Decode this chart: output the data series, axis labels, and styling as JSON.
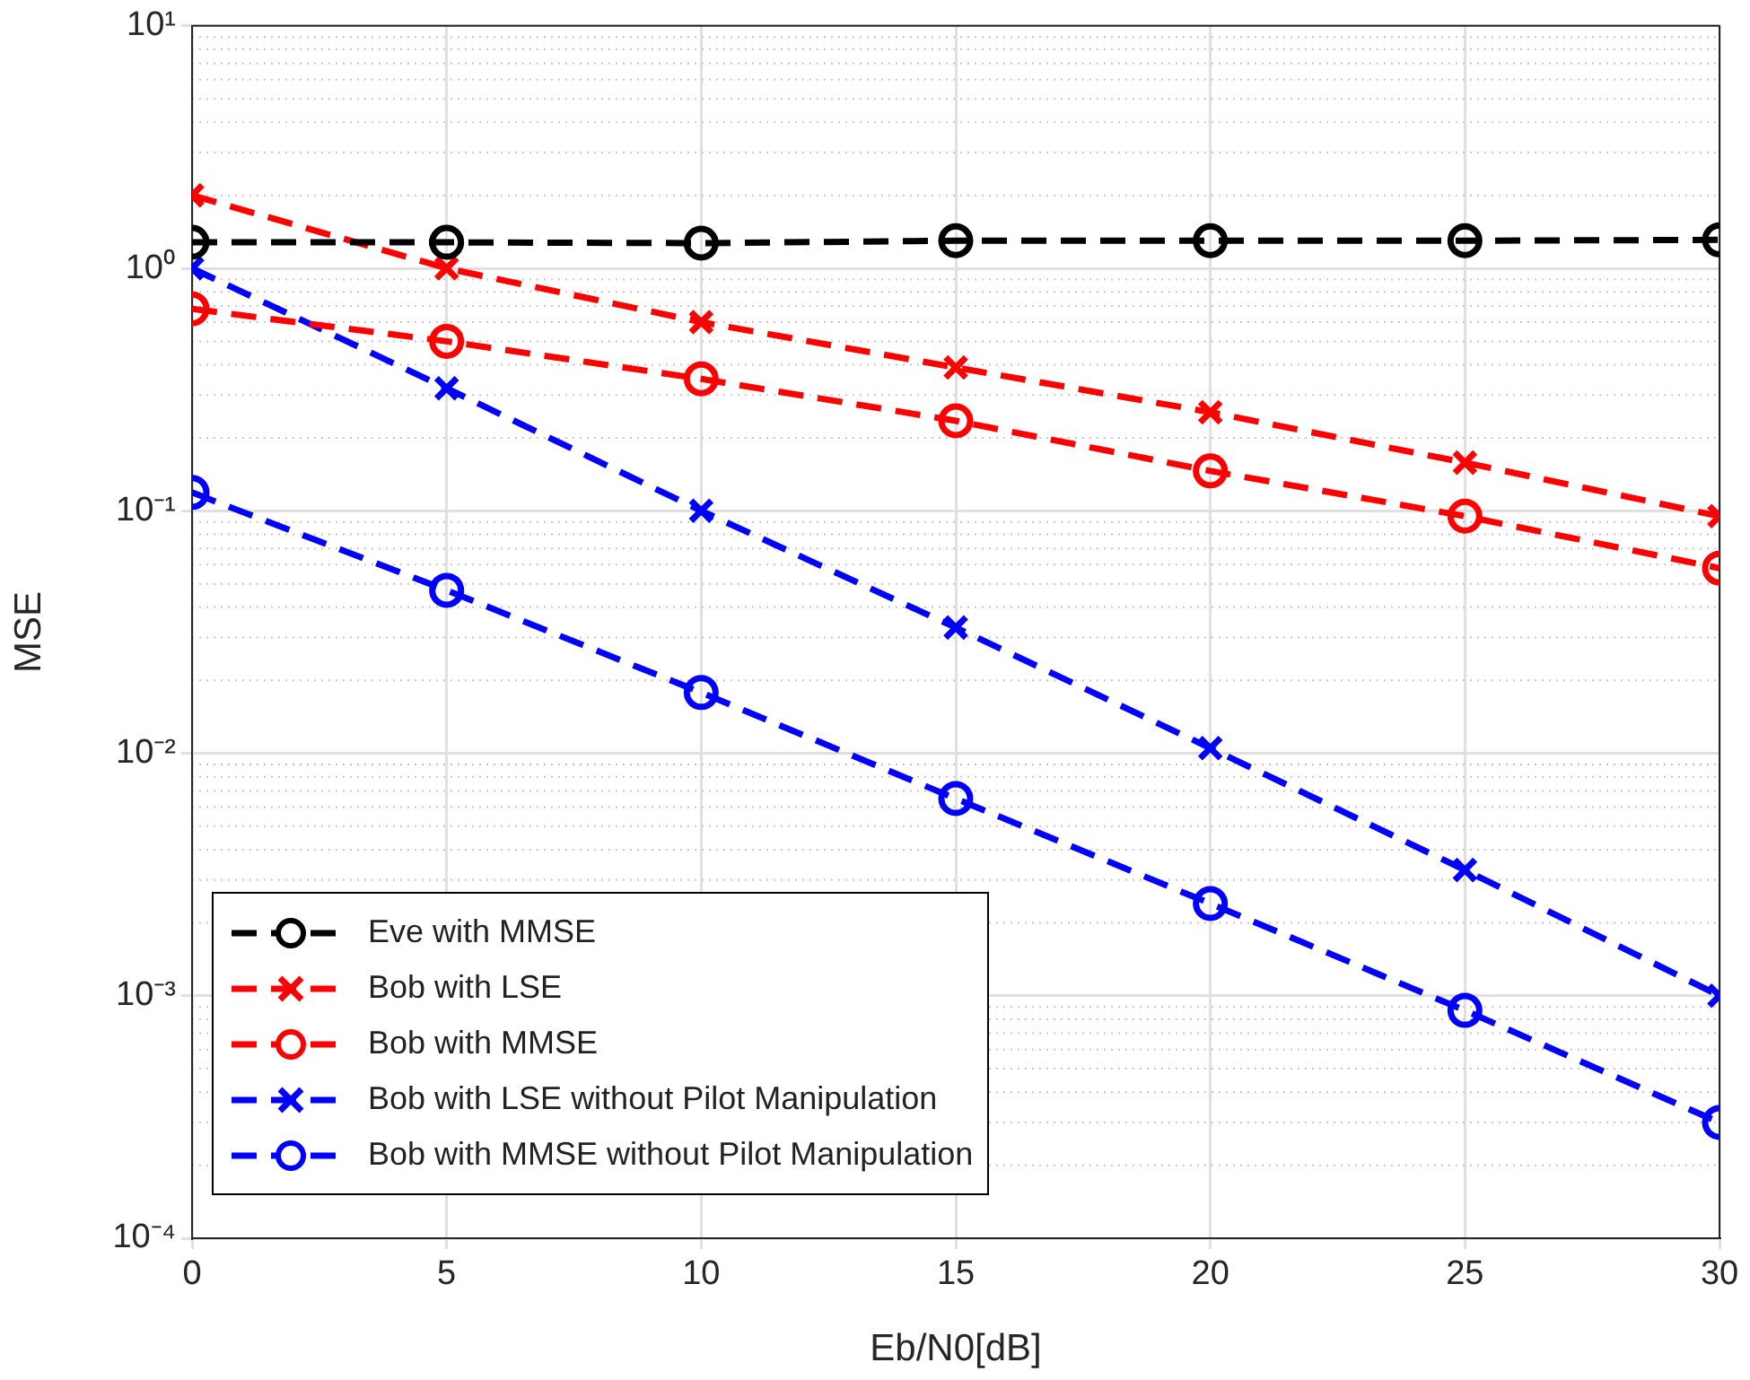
{
  "chart_data": {
    "type": "line",
    "xlabel": "Eb/N0[dB]",
    "ylabel": "MSE",
    "x": [
      0,
      5,
      10,
      15,
      20,
      25,
      30
    ],
    "xlim": [
      0,
      30
    ],
    "xticks": [
      0,
      5,
      10,
      15,
      20,
      25,
      30
    ],
    "ylim": [
      0.0001,
      10
    ],
    "yticks": [
      {
        "value": 0.0001,
        "label": "10⁻⁴"
      },
      {
        "value": 0.001,
        "label": "10⁻³"
      },
      {
        "value": 0.01,
        "label": "10⁻²"
      },
      {
        "value": 0.1,
        "label": "10⁻¹"
      },
      {
        "value": 1,
        "label": "10⁰"
      },
      {
        "value": 10,
        "label": "10¹"
      }
    ],
    "log": "y",
    "grid": true,
    "legend": "bottom left",
    "line_style": "dashed",
    "series": [
      {
        "name": "Eve with MMSE",
        "color": "#000000",
        "marker": "circle",
        "values": [
          1.28,
          1.28,
          1.27,
          1.3,
          1.3,
          1.3,
          1.31
        ]
      },
      {
        "name": "Bob with LSE",
        "color": "#ff0000",
        "marker": "cross",
        "values": [
          2.0,
          1.0,
          0.6,
          0.39,
          0.255,
          0.158,
          0.095
        ]
      },
      {
        "name": "Bob with MMSE",
        "color": "#ff0000",
        "marker": "circle",
        "values": [
          0.68,
          0.5,
          0.35,
          0.235,
          0.146,
          0.095,
          0.058
        ]
      },
      {
        "name": "Bob with LSE without Pilot Manipulation",
        "color": "#0000ff",
        "marker": "cross",
        "values": [
          1.0,
          0.32,
          0.1,
          0.033,
          0.0105,
          0.0033,
          0.001
        ]
      },
      {
        "name": "Bob with MMSE without Pilot Manipulation",
        "color": "#0000ff",
        "marker": "circle",
        "values": [
          0.119,
          0.047,
          0.0178,
          0.0065,
          0.0024,
          0.00087,
          0.0003
        ]
      }
    ]
  }
}
